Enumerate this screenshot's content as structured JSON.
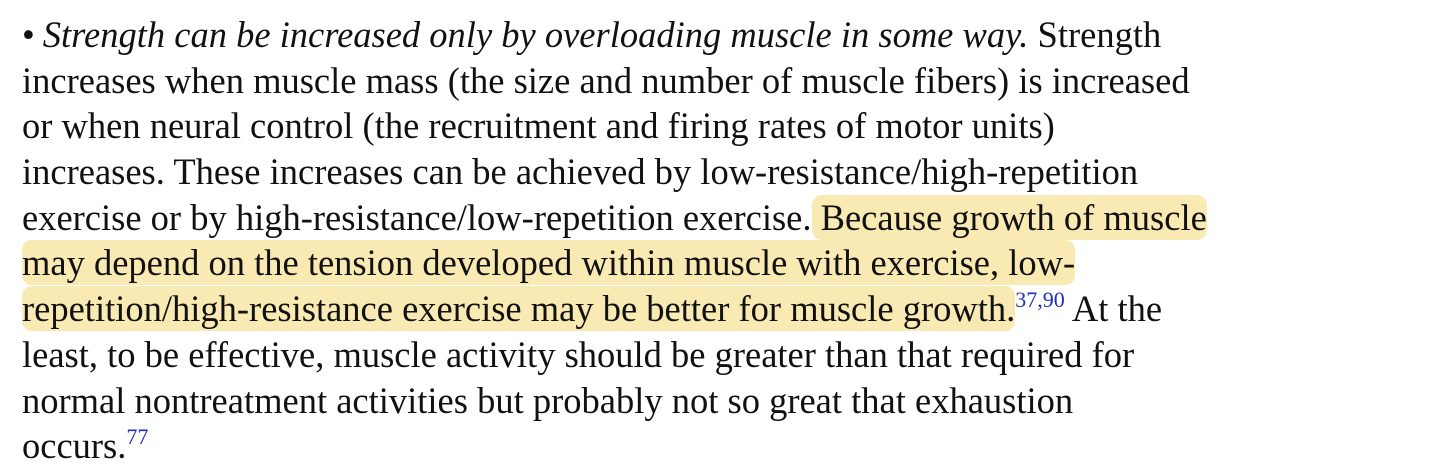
{
  "paragraph": {
    "highlight_color": "#f9e9b3",
    "link_color": "#2230b8",
    "lines": [
      [
        {
          "text": "•",
          "style": "bullet"
        },
        {
          "text": "Strength can be increased only by overloading muscle in some way.",
          "style": "italic"
        },
        {
          "text": " Strength"
        }
      ],
      [
        {
          "text": "increases when muscle mass (the size and number of muscle fibers) is increased"
        }
      ],
      [
        {
          "text": "or when neural control (the recruitment and firing rates of motor units)"
        }
      ],
      [
        {
          "text": "increases. These increases can be achieved by low-resistance/high-repetition"
        }
      ],
      [
        {
          "text": "exercise or by high-resistance/low-repetition exercise."
        },
        {
          "text": " Because growth of muscle",
          "style": "highlight"
        }
      ],
      [
        {
          "text": "may depend on the tension developed within muscle with exercise, low-",
          "style": "highlight"
        }
      ],
      [
        {
          "text": "repetition/high-resistance exercise may be better for muscle growth.",
          "style": "highlight"
        },
        {
          "text": "37,90",
          "style": "sup"
        },
        {
          "text": " At the"
        }
      ],
      [
        {
          "text": "least, to be effective, muscle activity should be greater than that required for"
        }
      ],
      [
        {
          "text": "normal nontreatment activities but probably not so great that exhaustion"
        }
      ],
      [
        {
          "text": "occurs."
        },
        {
          "text": "77",
          "style": "sup"
        }
      ]
    ]
  }
}
